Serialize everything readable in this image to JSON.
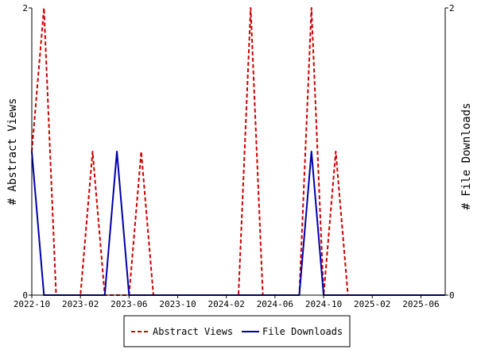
{
  "chart_data": {
    "type": "line",
    "x_tick_labels": [
      "2022-10",
      "2023-02",
      "2023-06",
      "2023-10",
      "2024-02",
      "2024-06",
      "2024-10",
      "2025-02",
      "2025-06"
    ],
    "x_range": [
      "2022-10",
      "2025-08"
    ],
    "x": [
      "2022-10",
      "2022-11",
      "2022-12",
      "2023-01",
      "2023-02",
      "2023-03",
      "2023-04",
      "2023-05",
      "2023-06",
      "2023-07",
      "2023-08",
      "2023-09",
      "2023-10",
      "2023-11",
      "2023-12",
      "2024-01",
      "2024-02",
      "2024-03",
      "2024-04",
      "2024-05",
      "2024-06",
      "2024-07",
      "2024-08",
      "2024-09",
      "2024-10",
      "2024-11",
      "2024-12",
      "2025-01",
      "2025-02",
      "2025-03",
      "2025-04",
      "2025-05",
      "2025-06",
      "2025-07",
      "2025-08"
    ],
    "series": [
      {
        "name": "Abstract Views",
        "axis": "left",
        "color": "#cc0000",
        "style": "dashed",
        "values": [
          1,
          2,
          0,
          0,
          0,
          1,
          0,
          0,
          0,
          1,
          0,
          0,
          0,
          0,
          0,
          0,
          0,
          0,
          2,
          0,
          0,
          0,
          0,
          2,
          0,
          1,
          0,
          0,
          0,
          0,
          0,
          0,
          0,
          0,
          0
        ]
      },
      {
        "name": "File Downloads",
        "axis": "right",
        "color": "#0000aa",
        "style": "solid",
        "values": [
          1,
          0,
          0,
          0,
          0,
          0,
          0,
          1,
          0,
          0,
          0,
          0,
          0,
          0,
          0,
          0,
          0,
          0,
          0,
          0,
          0,
          0,
          0,
          1,
          0,
          0,
          0,
          0,
          0,
          0,
          0,
          0,
          0,
          0,
          0
        ]
      }
    ],
    "ylabel_left": "# Abstract Views",
    "ylabel_right": "# File Downloads",
    "ylim_left": [
      0,
      2
    ],
    "ylim_right": [
      0,
      2
    ],
    "y_tick_labels_left": [
      "0",
      "2"
    ],
    "y_tick_labels_right": [
      "0",
      "2"
    ],
    "legend_position": "bottom-center",
    "grid": false
  }
}
